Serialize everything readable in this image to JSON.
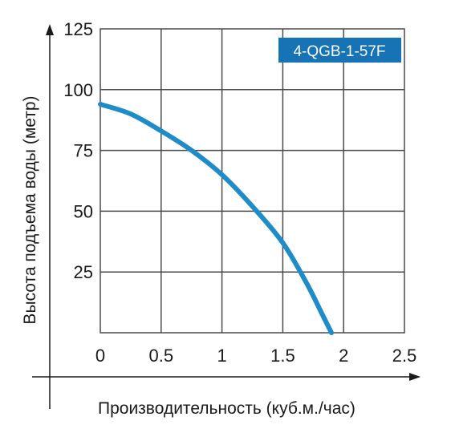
{
  "chart_data": {
    "type": "line",
    "title": "",
    "xlabel": "Производительность (куб.м./час)",
    "ylabel": "Высота подъема воды (метр)",
    "xlim": [
      0,
      2.5
    ],
    "ylim": [
      0,
      125
    ],
    "x_ticks": [
      "0",
      "0.5",
      "1",
      "1.5",
      "2",
      "2.5"
    ],
    "y_ticks": [
      "25",
      "50",
      "75",
      "100",
      "125"
    ],
    "grid": true,
    "series": [
      {
        "name": "4-QGB-1-57F",
        "color": "#1e8cc8",
        "points": [
          [
            0,
            94
          ],
          [
            0.25,
            90
          ],
          [
            0.5,
            83
          ],
          [
            0.75,
            75
          ],
          [
            1.0,
            65
          ],
          [
            1.25,
            52
          ],
          [
            1.5,
            37
          ],
          [
            1.7,
            20
          ],
          [
            1.82,
            8
          ],
          [
            1.9,
            0
          ]
        ]
      }
    ]
  },
  "legend": {
    "label": "4-QGB-1-57F",
    "background": "#1573b6",
    "position": "top-right"
  }
}
